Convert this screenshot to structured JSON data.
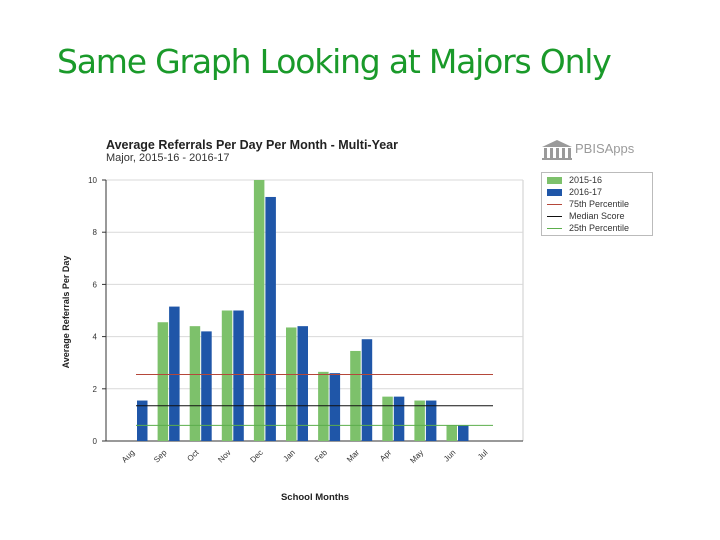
{
  "page": {
    "title": "Same Graph Looking at Majors Only"
  },
  "logo": {
    "text": "PBISApps",
    "icon": "building-columns-icon"
  },
  "chart_data": {
    "type": "bar",
    "title": "Average Referrals Per Day Per Month - Multi-Year",
    "subtitle": "Major, 2015-16 - 2016-17",
    "xlabel": "School Months",
    "ylabel": "Average Referrals Per Day",
    "ylim": [
      0,
      10
    ],
    "yticks": [
      "0",
      "2",
      "4",
      "6",
      "8",
      "10"
    ],
    "grid": true,
    "legend_position": "right",
    "categories": [
      "Aug",
      "Sep",
      "Oct",
      "Nov",
      "Dec",
      "Jan",
      "Feb",
      "Mar",
      "Apr",
      "May",
      "Jun",
      "Jul"
    ],
    "series": [
      {
        "name": "2015-16",
        "color": "#7dc16b",
        "values": [
          null,
          4.55,
          4.4,
          5.0,
          10.0,
          4.35,
          2.65,
          3.45,
          1.7,
          1.55,
          0.6,
          null
        ]
      },
      {
        "name": "2016-17",
        "color": "#1f56a8",
        "values": [
          1.55,
          5.15,
          4.2,
          5.0,
          9.35,
          4.4,
          2.6,
          3.9,
          1.7,
          1.55,
          0.6,
          null
        ]
      }
    ],
    "reference_lines": [
      {
        "name": "75th Percentile",
        "color": "#b5473a",
        "value": 2.55
      },
      {
        "name": "Median Score",
        "color": "#111111",
        "value": 1.35
      },
      {
        "name": "25th Percentile",
        "color": "#5cae4c",
        "value": 0.6
      }
    ]
  }
}
